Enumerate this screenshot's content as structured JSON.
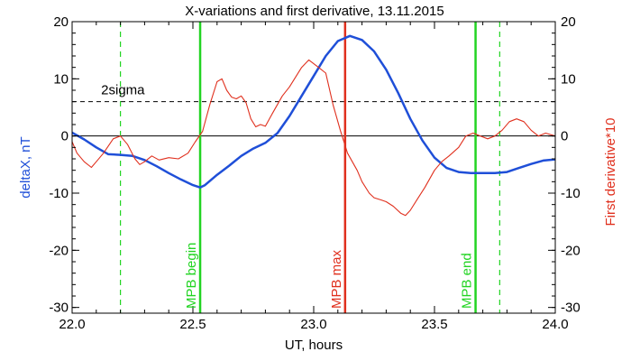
{
  "chart_data": {
    "type": "line",
    "title": "X-variations and first derivative, 13.11.2015",
    "xlabel": "UT, hours",
    "ylabel_left": "deltaX, nT",
    "ylabel_right": "First derivative*10",
    "xlim": [
      22.0,
      24.0
    ],
    "ylim": [
      -31,
      20
    ],
    "x_ticks": [
      "22.0",
      "22.5",
      "23.0",
      "23.5",
      "24.0"
    ],
    "x_tick_values": [
      22.0,
      22.5,
      23.0,
      23.5,
      24.0
    ],
    "y_ticks": [
      "20",
      "10",
      "0",
      "-10",
      "-20",
      "-30"
    ],
    "y_tick_values": [
      20,
      10,
      0,
      -10,
      -20,
      -30
    ],
    "colors": {
      "deltaX": "#1f4fd8",
      "derivative": "#e0301e",
      "mpb": "#22d422",
      "mpb_max": "#e0301e",
      "axis": "#000000"
    },
    "series": [
      {
        "key": "deltaX",
        "points": [
          [
            22.0,
            0.6
          ],
          [
            22.05,
            -0.6
          ],
          [
            22.1,
            -2.0
          ],
          [
            22.15,
            -3.2
          ],
          [
            22.2,
            -3.3
          ],
          [
            22.25,
            -3.5
          ],
          [
            22.3,
            -4.2
          ],
          [
            22.35,
            -5.3
          ],
          [
            22.4,
            -6.5
          ],
          [
            22.45,
            -7.6
          ],
          [
            22.5,
            -8.6
          ],
          [
            22.53,
            -9.0
          ],
          [
            22.55,
            -8.6
          ],
          [
            22.6,
            -6.8
          ],
          [
            22.65,
            -5.2
          ],
          [
            22.7,
            -3.5
          ],
          [
            22.75,
            -2.2
          ],
          [
            22.8,
            -1.2
          ],
          [
            22.85,
            0.5
          ],
          [
            22.9,
            3.5
          ],
          [
            22.95,
            7.0
          ],
          [
            23.0,
            10.5
          ],
          [
            23.05,
            14.0
          ],
          [
            23.1,
            16.6
          ],
          [
            23.15,
            17.5
          ],
          [
            23.2,
            16.8
          ],
          [
            23.25,
            14.8
          ],
          [
            23.3,
            11.6
          ],
          [
            23.35,
            7.5
          ],
          [
            23.4,
            3.0
          ],
          [
            23.45,
            -0.8
          ],
          [
            23.5,
            -3.8
          ],
          [
            23.55,
            -5.6
          ],
          [
            23.6,
            -6.3
          ],
          [
            23.65,
            -6.5
          ],
          [
            23.7,
            -6.5
          ],
          [
            23.75,
            -6.5
          ],
          [
            23.8,
            -6.3
          ],
          [
            23.85,
            -5.6
          ],
          [
            23.9,
            -4.9
          ],
          [
            23.95,
            -4.3
          ],
          [
            24.0,
            -4.1
          ]
        ]
      },
      {
        "key": "derivative",
        "points": [
          [
            22.0,
            -1.0
          ],
          [
            22.02,
            -3.0
          ],
          [
            22.05,
            -4.5
          ],
          [
            22.08,
            -5.5
          ],
          [
            22.1,
            -4.5
          ],
          [
            22.13,
            -3.0
          ],
          [
            22.17,
            -0.5
          ],
          [
            22.2,
            0.0
          ],
          [
            22.23,
            -1.5
          ],
          [
            22.26,
            -4.0
          ],
          [
            22.28,
            -5.0
          ],
          [
            22.3,
            -4.5
          ],
          [
            22.33,
            -3.5
          ],
          [
            22.36,
            -4.2
          ],
          [
            22.4,
            -3.8
          ],
          [
            22.44,
            -4.0
          ],
          [
            22.48,
            -3.0
          ],
          [
            22.51,
            -1.0
          ],
          [
            22.54,
            0.8
          ],
          [
            22.57,
            5.5
          ],
          [
            22.6,
            9.5
          ],
          [
            22.62,
            10.0
          ],
          [
            22.64,
            8.0
          ],
          [
            22.66,
            6.8
          ],
          [
            22.68,
            6.5
          ],
          [
            22.7,
            7.0
          ],
          [
            22.72,
            5.8
          ],
          [
            22.74,
            3.0
          ],
          [
            22.76,
            1.6
          ],
          [
            22.78,
            2.0
          ],
          [
            22.8,
            1.7
          ],
          [
            22.83,
            4.0
          ],
          [
            22.87,
            7.0
          ],
          [
            22.9,
            8.6
          ],
          [
            22.95,
            12.0
          ],
          [
            22.98,
            13.3
          ],
          [
            23.02,
            12.0
          ],
          [
            23.05,
            11.0
          ],
          [
            23.08,
            5.5
          ],
          [
            23.11,
            1.0
          ],
          [
            23.14,
            -3.0
          ],
          [
            23.18,
            -6.0
          ],
          [
            23.2,
            -8.0
          ],
          [
            23.23,
            -10.0
          ],
          [
            23.25,
            -10.8
          ],
          [
            23.28,
            -11.2
          ],
          [
            23.3,
            -11.5
          ],
          [
            23.33,
            -12.3
          ],
          [
            23.36,
            -13.5
          ],
          [
            23.38,
            -13.9
          ],
          [
            23.4,
            -13.0
          ],
          [
            23.43,
            -11.0
          ],
          [
            23.46,
            -9.0
          ],
          [
            23.5,
            -6.0
          ],
          [
            23.53,
            -4.5
          ],
          [
            23.56,
            -3.5
          ],
          [
            23.6,
            -2.0
          ],
          [
            23.63,
            0.0
          ],
          [
            23.66,
            0.5
          ],
          [
            23.69,
            0.0
          ],
          [
            23.72,
            -0.5
          ],
          [
            23.75,
            0.0
          ],
          [
            23.78,
            1.0
          ],
          [
            23.81,
            2.5
          ],
          [
            23.84,
            3.0
          ],
          [
            23.87,
            2.5
          ],
          [
            23.9,
            1.0
          ],
          [
            23.93,
            0.0
          ],
          [
            23.96,
            0.5
          ],
          [
            24.0,
            0.0
          ]
        ]
      }
    ],
    "lines": {
      "threshold_value": 6,
      "threshold_label": "2sigma",
      "zero_value": 0,
      "mpb_begin_x": 22.53,
      "mpb_begin_label": "MPB begin",
      "mpb_max_x": 23.13,
      "mpb_max_label": "MPB max",
      "mpb_end_x": 23.67,
      "mpb_end_label": "MPB end",
      "dashed_left_x": 22.2,
      "dashed_right_x": 23.77
    },
    "grid": false
  }
}
